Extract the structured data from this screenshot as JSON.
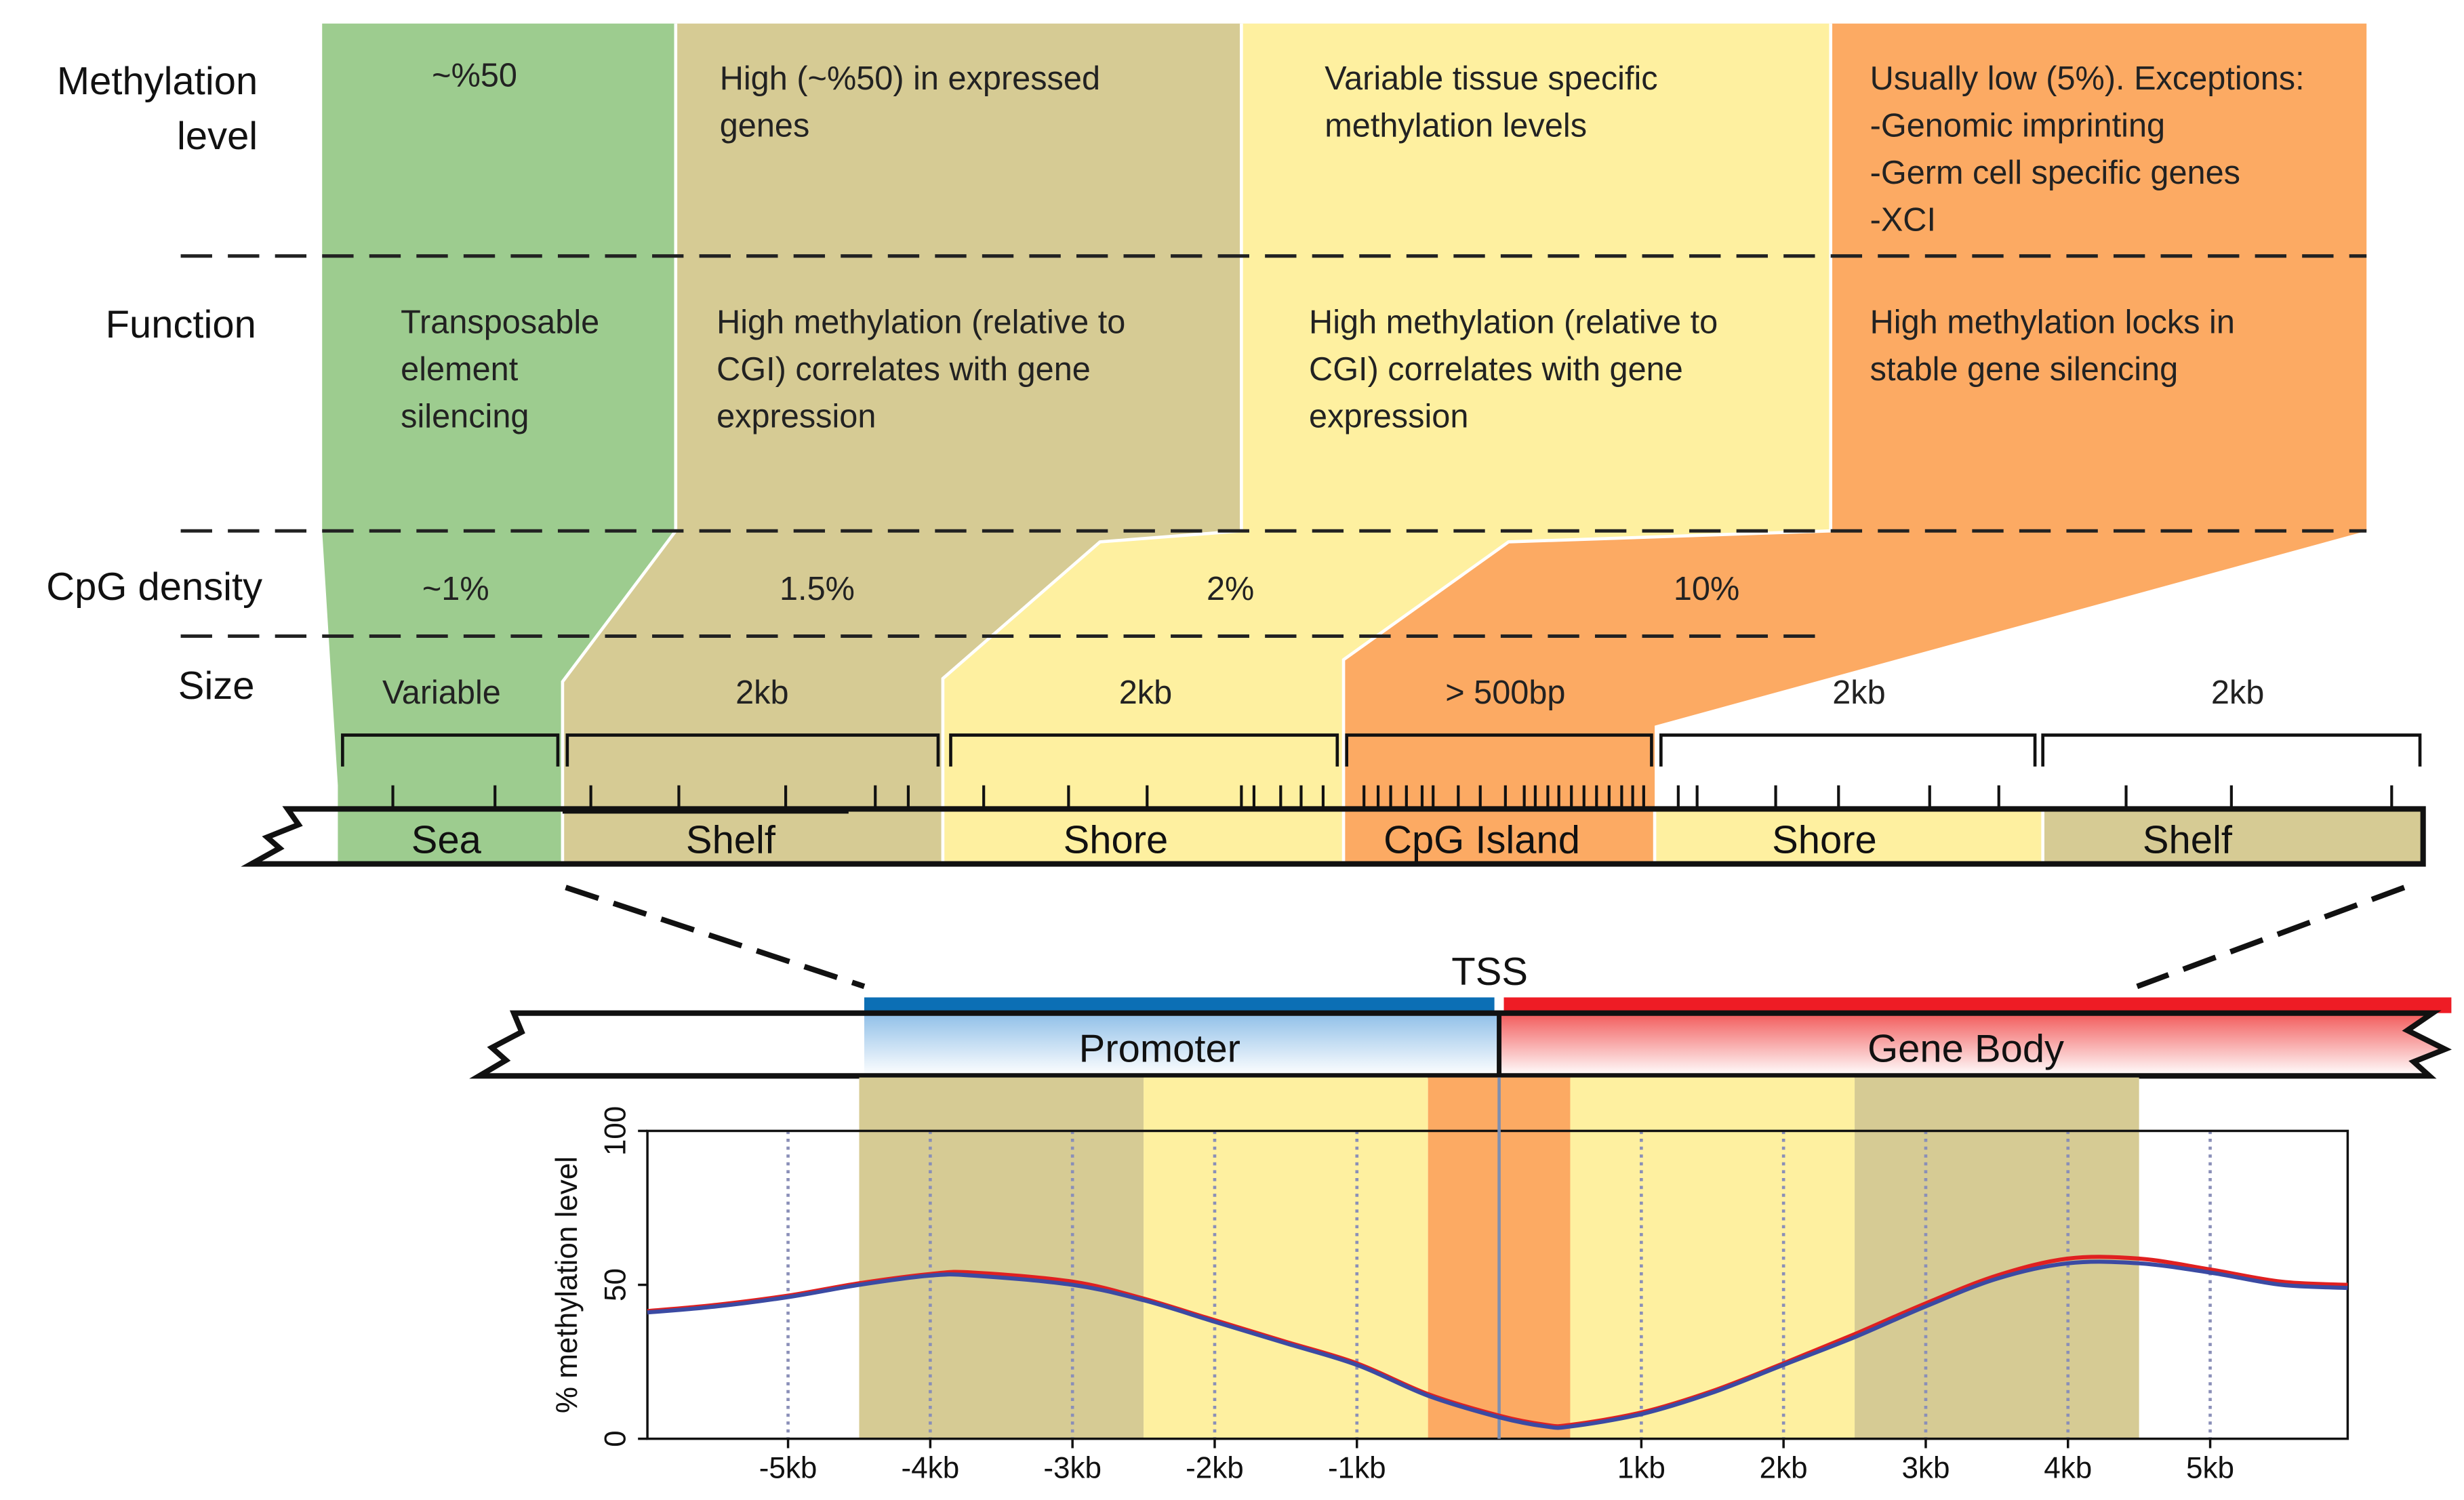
{
  "row_labels": {
    "methylation_line1": "Methylation",
    "methylation_line2": "level",
    "function": "Function",
    "cpg_density": "CpG density",
    "size": "Size"
  },
  "methylation_level": {
    "sea": "~%50",
    "shelf": [
      "High (~%50) in expressed",
      "genes"
    ],
    "shore": [
      "Variable tissue specific",
      "methylation levels"
    ],
    "island": [
      "Usually low (5%). Exceptions:",
      "-Genomic imprinting",
      "-Germ cell specific genes",
      "-XCI"
    ]
  },
  "function": {
    "sea": [
      "Transposable",
      "element",
      "silencing"
    ],
    "shelf": [
      "High methylation (relative to",
      "CGI) correlates with gene",
      "expression"
    ],
    "shore": [
      "High methylation (relative to",
      "CGI) correlates with gene",
      "expression"
    ],
    "island": [
      "High methylation locks in",
      "stable gene silencing"
    ]
  },
  "cpg_density": {
    "sea": "~1%",
    "shelf": "1.5%",
    "shore": "2%",
    "island": "10%"
  },
  "size": {
    "sea": "Variable",
    "shelf": "2kb",
    "shore": "2kb",
    "island": "> 500bp",
    "shore2": "2kb",
    "shelf2": "2kb"
  },
  "regions": {
    "sea": "Sea",
    "shelf": "Shelf",
    "shore": "Shore",
    "island": "CpG Island",
    "shore2": "Shore",
    "shelf2": "Shelf"
  },
  "gene": {
    "tss": "TSS",
    "promoter": "Promoter",
    "gene_body": "Gene Body"
  },
  "colors": {
    "sea": "#9dcc8f",
    "shelf": "#d6cb94",
    "shore": "#fef0a0",
    "island": "#fcaa63",
    "promoter_blue": "#0c6fb5",
    "body_red": "#ee1c25",
    "line_blue": "#3b4aa3",
    "line_red": "#e02020"
  },
  "chart_data": {
    "type": "line",
    "title": "",
    "xlabel": "",
    "ylabel": "% methylation level",
    "xlim": [
      -6,
      6
    ],
    "ylim": [
      0,
      100
    ],
    "xticks": [
      -5,
      -4,
      -3,
      -2,
      -1,
      1,
      2,
      3,
      4,
      5
    ],
    "xtick_labels": [
      "-5kb",
      "-4kb",
      "-3kb",
      "-2kb",
      "-1kb",
      "1kb",
      "2kb",
      "3kb",
      "4kb",
      "5kb"
    ],
    "yticks": [
      0,
      50,
      100
    ],
    "ytick_labels": [
      "0",
      "50",
      "100"
    ],
    "x": [
      -6,
      -5.5,
      -5,
      -4.5,
      -4,
      -3.7,
      -3,
      -2.5,
      -2,
      -1.5,
      -1,
      -0.5,
      0,
      0.33,
      0.5,
      1,
      1.5,
      2,
      2.5,
      3,
      3.5,
      4,
      4.5,
      5,
      5.5,
      6
    ],
    "series": [
      {
        "name": "blue",
        "values": [
          41,
          43,
          46,
          50,
          53,
          53,
          50,
          45,
          38,
          31,
          24,
          14,
          7,
          4,
          4,
          8,
          15,
          24,
          33,
          43,
          52,
          57,
          57,
          54,
          50,
          49
        ]
      },
      {
        "name": "red",
        "values": [
          41.5,
          43.5,
          46.5,
          50.5,
          53.5,
          54,
          51,
          45.5,
          38.5,
          31.5,
          24.5,
          14.5,
          7.5,
          4.5,
          4.5,
          8.5,
          15.5,
          24.5,
          34,
          44,
          53,
          58.5,
          58.5,
          55,
          51,
          50
        ]
      }
    ],
    "shaded_bands": [
      {
        "region": "shelf",
        "from": -4.5,
        "to": -2.5
      },
      {
        "region": "shore",
        "from": -2.5,
        "to": -0.5
      },
      {
        "region": "island",
        "from": -0.5,
        "to": 0.5
      },
      {
        "region": "shore",
        "from": 0.5,
        "to": 2.5
      },
      {
        "region": "shelf",
        "from": 2.5,
        "to": 4.5
      }
    ]
  }
}
